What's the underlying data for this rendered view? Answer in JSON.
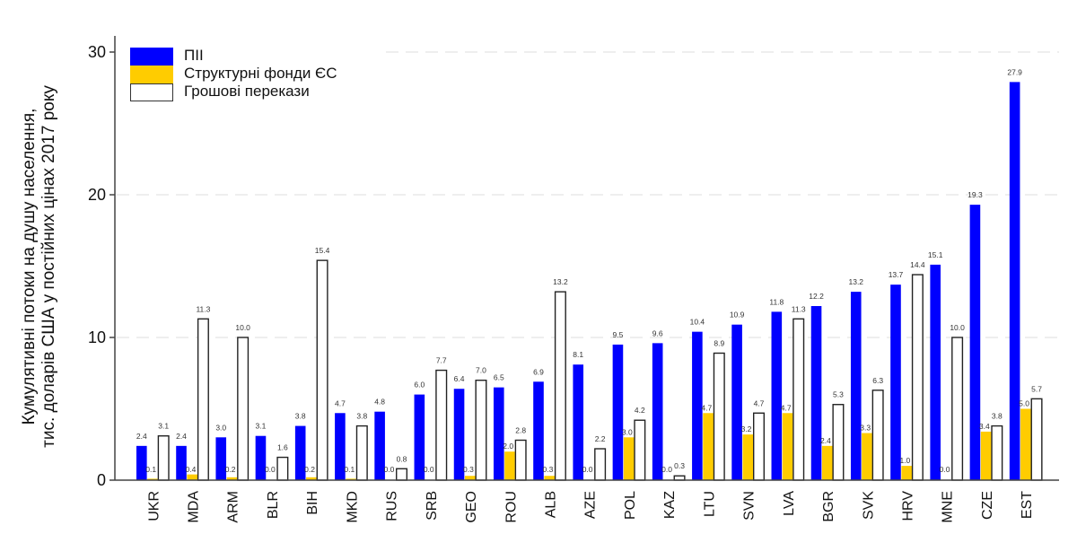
{
  "chart_data": {
    "type": "bar",
    "title": "",
    "ylabel": "Кумулятивні потоки на душу населення, тис. доларів США у постійних цінах 2017 року",
    "ylabel_lines": [
      "Кумулятивні потоки на душу населення,",
      "тис. доларів США у постійних цінах 2017 року"
    ],
    "xlabel": "",
    "ylim": [
      0,
      31
    ],
    "yticks": [
      0,
      10,
      20,
      30
    ],
    "grid": "horizontal dashed",
    "legend_position": "upper left",
    "categories": [
      "UKR",
      "MDA",
      "ARM",
      "BLR",
      "BIH",
      "MKD",
      "RUS",
      "SRB",
      "GEO",
      "ROU",
      "ALB",
      "AZE",
      "POL",
      "KAZ",
      "LTU",
      "SVN",
      "LVA",
      "BGR",
      "SVK",
      "HRV",
      "MNE",
      "CZE",
      "EST"
    ],
    "series": [
      {
        "name": "ПІІ",
        "color": "#0000ff",
        "values": [
          2.4,
          2.4,
          3.0,
          3.1,
          3.8,
          4.7,
          4.8,
          6.0,
          6.4,
          6.5,
          6.9,
          8.1,
          9.5,
          9.6,
          10.4,
          10.9,
          11.8,
          12.2,
          13.2,
          13.7,
          15.1,
          19.3,
          27.9
        ]
      },
      {
        "name": "Структурні фонди ЄС",
        "color": "#ffcc00",
        "values": [
          0.1,
          0.4,
          0.2,
          0.0,
          0.2,
          0.1,
          0.0,
          0.0,
          0.3,
          2.0,
          0.3,
          0.0,
          3.0,
          0.0,
          4.7,
          3.2,
          4.7,
          2.4,
          3.3,
          1.0,
          0.0,
          3.4,
          5.0
        ]
      },
      {
        "name": "Грошові перекази",
        "color": "#ffffff",
        "values": [
          3.1,
          11.3,
          10.0,
          1.6,
          15.4,
          3.8,
          0.8,
          7.7,
          7.0,
          2.8,
          13.2,
          2.2,
          4.2,
          0.3,
          8.9,
          4.7,
          11.3,
          5.3,
          6.3,
          14.4,
          10.0,
          3.8,
          5.7
        ]
      }
    ]
  },
  "legend": {
    "items": [
      {
        "label": "ПІІ",
        "color": "#0000ff"
      },
      {
        "label": "Структурні фонди ЄС",
        "color": "#ffcc00"
      },
      {
        "label": "Грошові перекази",
        "color": "#ffffff"
      }
    ]
  }
}
